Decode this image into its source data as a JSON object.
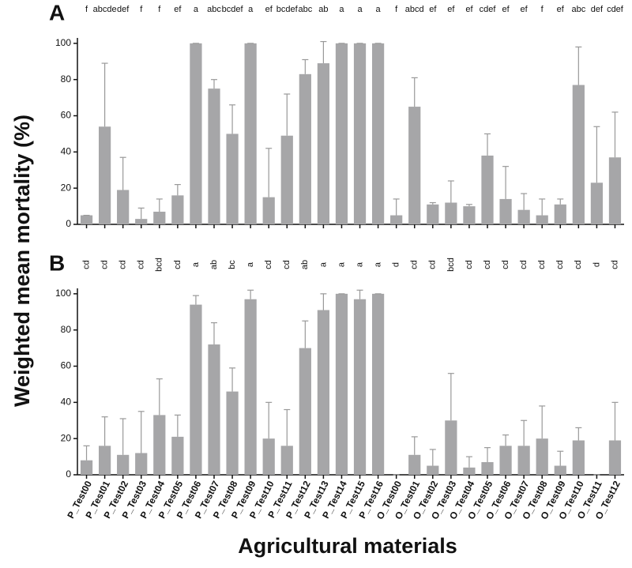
{
  "chart_data": [
    {
      "type": "bar",
      "title": "A",
      "color": "#a6a6a8",
      "ylim": [
        0,
        103
      ],
      "yticks": [
        0,
        20,
        40,
        60,
        80,
        100
      ],
      "ylabel": "Weighted mean mortality (%)",
      "values": [
        5,
        54,
        19,
        3,
        7,
        16,
        100,
        75,
        50,
        100,
        15,
        49,
        83,
        89,
        100,
        100,
        100,
        5,
        65,
        11,
        12,
        10,
        38,
        14,
        8,
        5,
        11,
        77,
        23,
        37
      ],
      "errors": [
        0,
        35,
        18,
        6,
        7,
        6,
        0,
        5,
        16,
        0,
        27,
        23,
        8,
        12,
        0,
        0,
        0,
        9,
        16,
        1,
        12,
        1,
        12,
        18,
        9,
        9,
        3,
        21,
        31,
        25
      ],
      "annotations": [
        "f",
        "abcde",
        "def",
        "f",
        "f",
        "ef",
        "a",
        "abc",
        "bcdef",
        "a",
        "ef",
        "bcdef",
        "abc",
        "ab",
        "a",
        "a",
        "a",
        "f",
        "abcd",
        "ef",
        "ef",
        "ef",
        "cdef",
        "ef",
        "ef",
        "f",
        "ef",
        "abc",
        "def",
        "cdef"
      ]
    },
    {
      "type": "bar",
      "title": "B",
      "color": "#a6a6a8",
      "ylim": [
        0,
        103
      ],
      "yticks": [
        0,
        20,
        40,
        60,
        80,
        100
      ],
      "xlabel": "Agricultural materials",
      "categories": [
        "P_Test00",
        "P_Test01",
        "P_Test02",
        "P_Test03",
        "P_Test04",
        "P_Test05",
        "P_Test06",
        "P_Test07",
        "P_Test08",
        "P_Test09",
        "P_Test10",
        "P_Test11",
        "P_Test12",
        "P_Test13",
        "P_Test14",
        "P_Test15",
        "P_Test16",
        "O_Test00",
        "O_Test01",
        "O_Test02",
        "O_Test03",
        "O_Test04",
        "O_Test05",
        "O_Test06",
        "O_Test07",
        "O_Test08",
        "O_Test09",
        "O_Test10",
        "O_Test11",
        "O_Test12"
      ],
      "values": [
        8,
        16,
        11,
        12,
        33,
        21,
        94,
        72,
        46,
        97,
        20,
        16,
        70,
        91,
        100,
        97,
        100,
        0,
        11,
        5,
        30,
        4,
        7,
        16,
        16,
        20,
        5,
        19,
        0,
        19
      ],
      "errors": [
        8,
        16,
        20,
        23,
        20,
        12,
        5,
        12,
        13,
        5,
        20,
        20,
        15,
        9,
        0,
        5,
        0,
        0,
        10,
        9,
        26,
        6,
        8,
        6,
        14,
        18,
        8,
        7,
        0,
        21
      ],
      "annotations": [
        "cd",
        "cd",
        "cd",
        "cd",
        "bcd",
        "cd",
        "a",
        "ab",
        "bc",
        "a",
        "cd",
        "cd",
        "ab",
        "a",
        "a",
        "a",
        "a",
        "d",
        "cd",
        "cd",
        "bcd",
        "cd",
        "cd",
        "cd",
        "cd",
        "cd",
        "cd",
        "cd",
        "d",
        "cd"
      ]
    }
  ]
}
